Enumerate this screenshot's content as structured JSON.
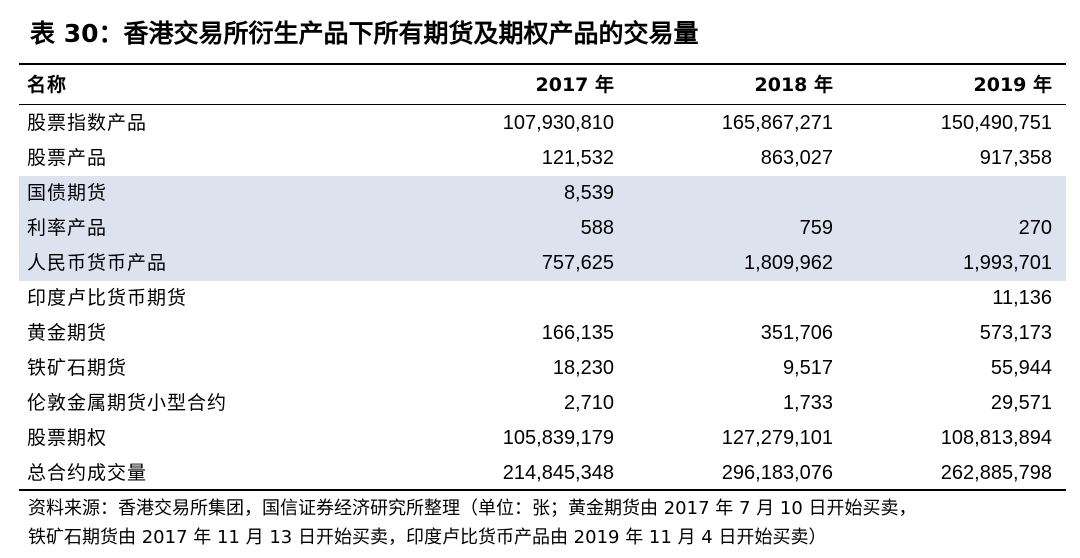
{
  "title": "表 30：香港交易所衍生产品下所有期货及期权产品的交易量",
  "columns": [
    "名称",
    "2017 年",
    "2018 年",
    "2019 年"
  ],
  "rows": [
    {
      "name": "股票指数产品",
      "y2017": "107,930,810",
      "y2018": "165,867,271",
      "y2019": "150,490,751",
      "shaded": false
    },
    {
      "name": "股票产品",
      "y2017": "121,532",
      "y2018": "863,027",
      "y2019": "917,358",
      "shaded": false
    },
    {
      "name": "国债期货",
      "y2017": "8,539",
      "y2018": "",
      "y2019": "",
      "shaded": true
    },
    {
      "name": "利率产品",
      "y2017": "588",
      "y2018": "759",
      "y2019": "270",
      "shaded": true
    },
    {
      "name": "人民币货币产品",
      "y2017": "757,625",
      "y2018": "1,809,962",
      "y2019": "1,993,701",
      "shaded": true
    },
    {
      "name": "印度卢比货币期货",
      "y2017": "",
      "y2018": "",
      "y2019": "11,136",
      "shaded": false
    },
    {
      "name": "黄金期货",
      "y2017": "166,135",
      "y2018": "351,706",
      "y2019": "573,173",
      "shaded": false
    },
    {
      "name": "铁矿石期货",
      "y2017": "18,230",
      "y2018": "9,517",
      "y2019": "55,944",
      "shaded": false
    },
    {
      "name": "伦敦金属期货小型合约",
      "y2017": "2,710",
      "y2018": "1,733",
      "y2019": "29,571",
      "shaded": false
    },
    {
      "name": "股票期权",
      "y2017": "105,839,179",
      "y2018": "127,279,101",
      "y2019": "108,813,894",
      "shaded": false
    },
    {
      "name": "总合约成交量",
      "y2017": "214,845,348",
      "y2018": "296,183,076",
      "y2019": "262,885,798",
      "shaded": false
    }
  ],
  "note": {
    "line1": "资料来源：香港交易所集团，国信证券经济研究所整理（单位：张；黄金期货由 2017 年 7 月 10 日开始买卖，",
    "line2": "铁矿石期货由 2017 年 11 月 13 日开始买卖，印度卢比货币产品由 2019 年 11 月 4 日开始买卖）"
  },
  "colors": {
    "shaded_row": "#dce3ef",
    "rule": "#000000"
  }
}
